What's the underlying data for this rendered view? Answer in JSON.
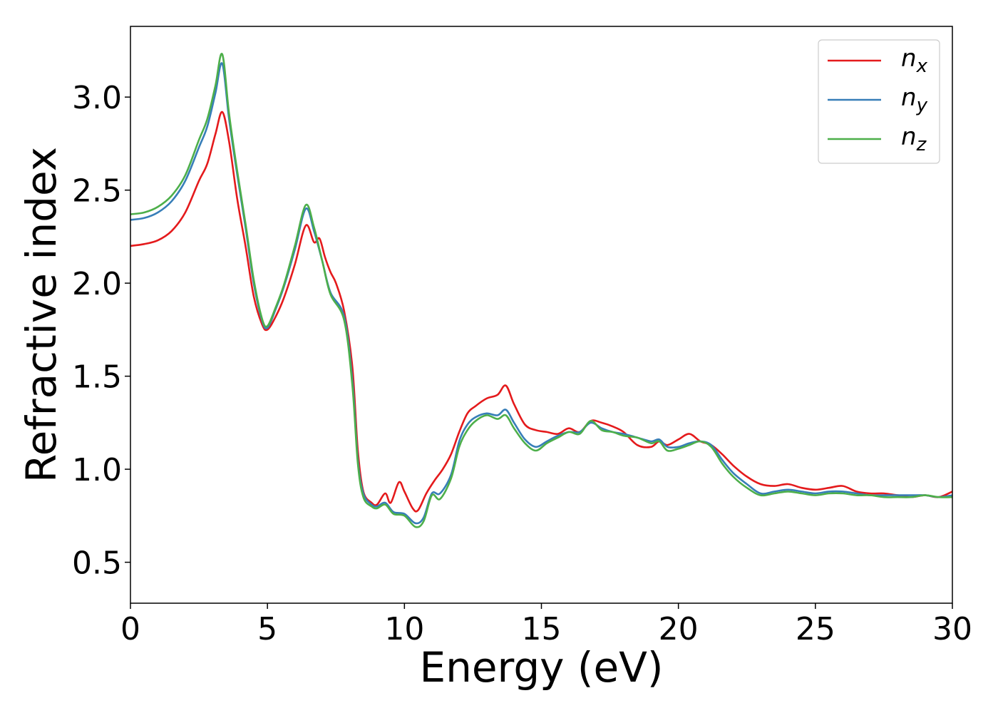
{
  "chart_data": {
    "type": "line",
    "xlabel": "Energy (eV)",
    "ylabel": "Refractive index",
    "xlim": [
      0,
      30
    ],
    "ylim": [
      0.28,
      3.38
    ],
    "xticks": [
      "0",
      "5",
      "10",
      "15",
      "20",
      "25",
      "30"
    ],
    "yticks": [
      "0.5",
      "1.0",
      "1.5",
      "2.0",
      "2.5",
      "3.0"
    ],
    "xtick_values": [
      0,
      5,
      10,
      15,
      20,
      25,
      30
    ],
    "ytick_values": [
      0.5,
      1.0,
      1.5,
      2.0,
      2.5,
      3.0
    ],
    "grid": false,
    "legend_position": "top-right",
    "series": [
      {
        "name": "n_x",
        "label_base": "n",
        "label_sub": "x",
        "color": "#e41a1c",
        "points": [
          [
            0,
            2.2
          ],
          [
            0.5,
            2.21
          ],
          [
            1,
            2.23
          ],
          [
            1.5,
            2.28
          ],
          [
            2,
            2.38
          ],
          [
            2.5,
            2.55
          ],
          [
            2.8,
            2.64
          ],
          [
            3.1,
            2.8
          ],
          [
            3.35,
            2.92
          ],
          [
            3.6,
            2.76
          ],
          [
            3.9,
            2.45
          ],
          [
            4.2,
            2.2
          ],
          [
            4.5,
            1.93
          ],
          [
            4.8,
            1.78
          ],
          [
            5.0,
            1.75
          ],
          [
            5.3,
            1.82
          ],
          [
            5.6,
            1.92
          ],
          [
            6.0,
            2.1
          ],
          [
            6.4,
            2.31
          ],
          [
            6.7,
            2.22
          ],
          [
            6.9,
            2.24
          ],
          [
            7.1,
            2.14
          ],
          [
            7.3,
            2.06
          ],
          [
            7.5,
            2.0
          ],
          [
            7.8,
            1.85
          ],
          [
            8.1,
            1.55
          ],
          [
            8.3,
            1.1
          ],
          [
            8.5,
            0.88
          ],
          [
            8.8,
            0.82
          ],
          [
            9.0,
            0.81
          ],
          [
            9.3,
            0.87
          ],
          [
            9.5,
            0.82
          ],
          [
            9.8,
            0.93
          ],
          [
            10.0,
            0.88
          ],
          [
            10.3,
            0.79
          ],
          [
            10.5,
            0.78
          ],
          [
            10.8,
            0.87
          ],
          [
            11.1,
            0.94
          ],
          [
            11.4,
            1.0
          ],
          [
            11.7,
            1.08
          ],
          [
            12.0,
            1.2
          ],
          [
            12.3,
            1.3
          ],
          [
            12.6,
            1.34
          ],
          [
            13.0,
            1.38
          ],
          [
            13.4,
            1.4
          ],
          [
            13.7,
            1.45
          ],
          [
            14.0,
            1.35
          ],
          [
            14.4,
            1.24
          ],
          [
            14.8,
            1.21
          ],
          [
            15.2,
            1.2
          ],
          [
            15.6,
            1.19
          ],
          [
            16.0,
            1.22
          ],
          [
            16.4,
            1.2
          ],
          [
            16.8,
            1.26
          ],
          [
            17.2,
            1.25
          ],
          [
            17.6,
            1.23
          ],
          [
            18.0,
            1.2
          ],
          [
            18.5,
            1.13
          ],
          [
            19.0,
            1.12
          ],
          [
            19.3,
            1.15
          ],
          [
            19.6,
            1.13
          ],
          [
            20.0,
            1.16
          ],
          [
            20.4,
            1.19
          ],
          [
            20.8,
            1.15
          ],
          [
            21.2,
            1.13
          ],
          [
            21.6,
            1.08
          ],
          [
            22.0,
            1.02
          ],
          [
            22.5,
            0.96
          ],
          [
            23.0,
            0.92
          ],
          [
            23.5,
            0.91
          ],
          [
            24.0,
            0.92
          ],
          [
            24.5,
            0.9
          ],
          [
            25.0,
            0.89
          ],
          [
            25.5,
            0.9
          ],
          [
            26.0,
            0.91
          ],
          [
            26.5,
            0.88
          ],
          [
            27.0,
            0.87
          ],
          [
            27.5,
            0.87
          ],
          [
            28.0,
            0.86
          ],
          [
            28.5,
            0.85
          ],
          [
            29.0,
            0.86
          ],
          [
            29.5,
            0.85
          ],
          [
            30.0,
            0.88
          ]
        ]
      },
      {
        "name": "n_y",
        "label_base": "n",
        "label_sub": "y",
        "color": "#377eb8",
        "points": [
          [
            0,
            2.34
          ],
          [
            0.5,
            2.35
          ],
          [
            1,
            2.38
          ],
          [
            1.5,
            2.44
          ],
          [
            2,
            2.55
          ],
          [
            2.5,
            2.73
          ],
          [
            2.8,
            2.84
          ],
          [
            3.1,
            3.02
          ],
          [
            3.35,
            3.18
          ],
          [
            3.6,
            2.88
          ],
          [
            3.9,
            2.58
          ],
          [
            4.2,
            2.3
          ],
          [
            4.5,
            2.0
          ],
          [
            4.8,
            1.8
          ],
          [
            5.0,
            1.76
          ],
          [
            5.3,
            1.86
          ],
          [
            5.6,
            1.98
          ],
          [
            6.0,
            2.18
          ],
          [
            6.4,
            2.4
          ],
          [
            6.7,
            2.28
          ],
          [
            7.0,
            2.12
          ],
          [
            7.3,
            1.95
          ],
          [
            7.8,
            1.82
          ],
          [
            8.1,
            1.48
          ],
          [
            8.3,
            1.05
          ],
          [
            8.5,
            0.87
          ],
          [
            8.8,
            0.81
          ],
          [
            9.0,
            0.8
          ],
          [
            9.3,
            0.82
          ],
          [
            9.6,
            0.77
          ],
          [
            10.0,
            0.76
          ],
          [
            10.4,
            0.71
          ],
          [
            10.7,
            0.74
          ],
          [
            11.0,
            0.87
          ],
          [
            11.3,
            0.87
          ],
          [
            11.7,
            0.97
          ],
          [
            12.0,
            1.15
          ],
          [
            12.3,
            1.24
          ],
          [
            12.6,
            1.28
          ],
          [
            13.0,
            1.3
          ],
          [
            13.4,
            1.29
          ],
          [
            13.7,
            1.32
          ],
          [
            14.0,
            1.25
          ],
          [
            14.4,
            1.16
          ],
          [
            14.8,
            1.12
          ],
          [
            15.2,
            1.15
          ],
          [
            15.6,
            1.18
          ],
          [
            16.0,
            1.2
          ],
          [
            16.4,
            1.2
          ],
          [
            16.8,
            1.25
          ],
          [
            17.2,
            1.22
          ],
          [
            17.6,
            1.2
          ],
          [
            18.0,
            1.19
          ],
          [
            18.5,
            1.17
          ],
          [
            19.0,
            1.15
          ],
          [
            19.3,
            1.16
          ],
          [
            19.6,
            1.12
          ],
          [
            20.0,
            1.12
          ],
          [
            20.4,
            1.14
          ],
          [
            20.8,
            1.15
          ],
          [
            21.2,
            1.13
          ],
          [
            21.6,
            1.05
          ],
          [
            22.0,
            0.98
          ],
          [
            22.5,
            0.92
          ],
          [
            23.0,
            0.87
          ],
          [
            23.5,
            0.88
          ],
          [
            24.0,
            0.89
          ],
          [
            24.5,
            0.88
          ],
          [
            25.0,
            0.87
          ],
          [
            25.5,
            0.88
          ],
          [
            26.0,
            0.88
          ],
          [
            26.5,
            0.87
          ],
          [
            27.0,
            0.86
          ],
          [
            27.5,
            0.86
          ],
          [
            28.0,
            0.86
          ],
          [
            28.5,
            0.86
          ],
          [
            29.0,
            0.86
          ],
          [
            29.5,
            0.85
          ],
          [
            30.0,
            0.86
          ]
        ]
      },
      {
        "name": "n_z",
        "label_base": "n",
        "label_sub": "z",
        "color": "#4daf4a",
        "points": [
          [
            0,
            2.37
          ],
          [
            0.5,
            2.38
          ],
          [
            1,
            2.41
          ],
          [
            1.5,
            2.47
          ],
          [
            2,
            2.58
          ],
          [
            2.5,
            2.77
          ],
          [
            2.8,
            2.88
          ],
          [
            3.1,
            3.06
          ],
          [
            3.35,
            3.23
          ],
          [
            3.6,
            2.91
          ],
          [
            3.9,
            2.6
          ],
          [
            4.2,
            2.32
          ],
          [
            4.5,
            2.02
          ],
          [
            4.8,
            1.81
          ],
          [
            5.0,
            1.77
          ],
          [
            5.3,
            1.87
          ],
          [
            5.6,
            1.99
          ],
          [
            6.0,
            2.2
          ],
          [
            6.4,
            2.42
          ],
          [
            6.7,
            2.3
          ],
          [
            7.0,
            2.12
          ],
          [
            7.3,
            1.94
          ],
          [
            7.8,
            1.8
          ],
          [
            8.1,
            1.45
          ],
          [
            8.3,
            1.03
          ],
          [
            8.5,
            0.85
          ],
          [
            8.8,
            0.8
          ],
          [
            9.0,
            0.79
          ],
          [
            9.3,
            0.81
          ],
          [
            9.6,
            0.76
          ],
          [
            10.0,
            0.75
          ],
          [
            10.4,
            0.69
          ],
          [
            10.7,
            0.72
          ],
          [
            11.0,
            0.86
          ],
          [
            11.3,
            0.84
          ],
          [
            11.7,
            0.95
          ],
          [
            12.0,
            1.12
          ],
          [
            12.3,
            1.21
          ],
          [
            12.6,
            1.26
          ],
          [
            13.0,
            1.29
          ],
          [
            13.4,
            1.27
          ],
          [
            13.7,
            1.29
          ],
          [
            14.0,
            1.22
          ],
          [
            14.4,
            1.14
          ],
          [
            14.8,
            1.1
          ],
          [
            15.2,
            1.14
          ],
          [
            15.6,
            1.17
          ],
          [
            16.0,
            1.2
          ],
          [
            16.4,
            1.19
          ],
          [
            16.8,
            1.26
          ],
          [
            17.2,
            1.21
          ],
          [
            17.6,
            1.2
          ],
          [
            18.0,
            1.18
          ],
          [
            18.5,
            1.17
          ],
          [
            19.0,
            1.14
          ],
          [
            19.3,
            1.15
          ],
          [
            19.6,
            1.1
          ],
          [
            20.0,
            1.11
          ],
          [
            20.4,
            1.13
          ],
          [
            20.8,
            1.15
          ],
          [
            21.2,
            1.12
          ],
          [
            21.6,
            1.03
          ],
          [
            22.0,
            0.96
          ],
          [
            22.5,
            0.9
          ],
          [
            23.0,
            0.86
          ],
          [
            23.5,
            0.87
          ],
          [
            24.0,
            0.88
          ],
          [
            24.5,
            0.87
          ],
          [
            25.0,
            0.86
          ],
          [
            25.5,
            0.87
          ],
          [
            26.0,
            0.87
          ],
          [
            26.5,
            0.86
          ],
          [
            27.0,
            0.86
          ],
          [
            27.5,
            0.85
          ],
          [
            28.0,
            0.85
          ],
          [
            28.5,
            0.85
          ],
          [
            29.0,
            0.86
          ],
          [
            29.5,
            0.85
          ],
          [
            30.0,
            0.85
          ]
        ]
      }
    ]
  }
}
